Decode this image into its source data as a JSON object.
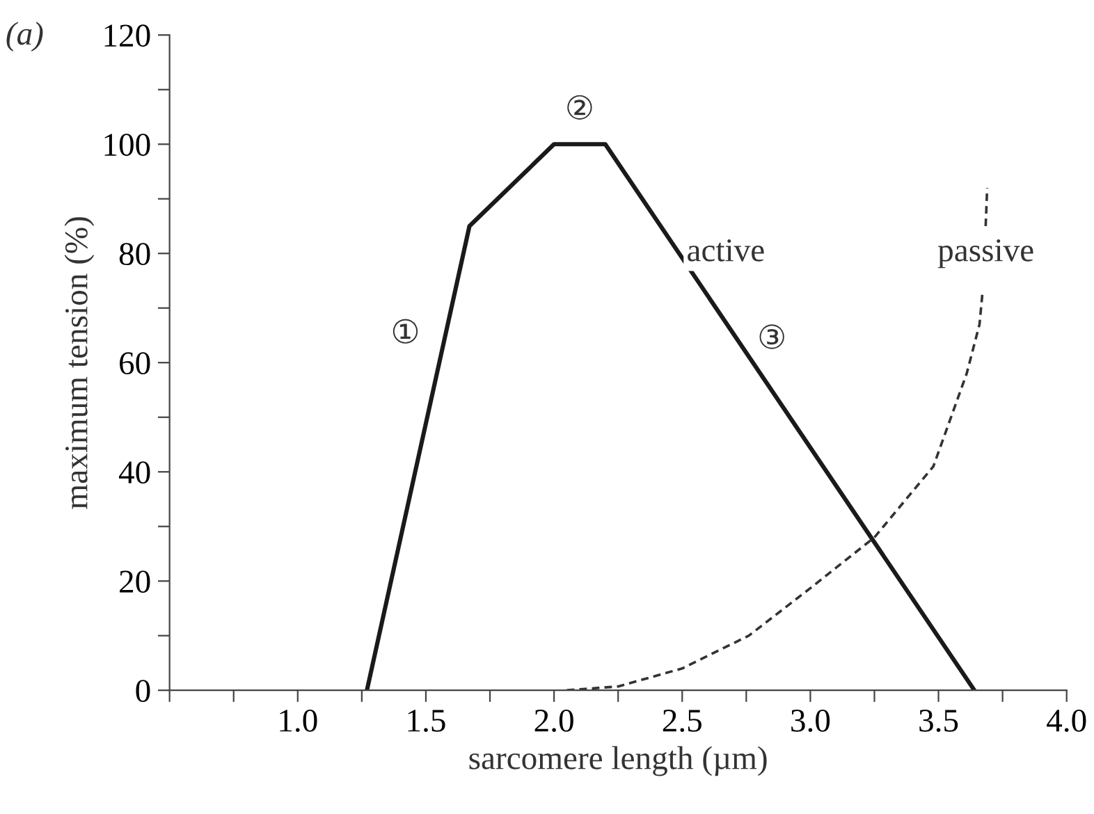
{
  "chart_data": {
    "type": "line",
    "xlabel": "sarcomere length (µm)",
    "ylabel": "maximum tension (%)",
    "series": [
      {
        "name": "active",
        "color": "#1a1a1a",
        "line_style": "solid",
        "x": [
          1.27,
          1.67,
          2.0,
          2.2,
          3.64
        ],
        "values": [
          0,
          85,
          100,
          100,
          0
        ]
      },
      {
        "name": "passive",
        "color": "#333333",
        "line_style": "dashed",
        "x": [
          2.05,
          2.25,
          2.5,
          2.76,
          3.0,
          3.25,
          3.48,
          3.61,
          3.66,
          3.672,
          3.678,
          3.684,
          3.69
        ],
        "values": [
          0,
          0.7,
          4,
          10,
          18.7,
          28,
          41,
          58,
          67,
          73,
          null,
          85,
          92
        ]
      }
    ],
    "xlim": [
      0.5,
      4.0
    ],
    "ylim": [
      0,
      120
    ],
    "xticks": [
      {
        "value": 0.5,
        "label": null
      },
      {
        "value": 0.75,
        "label": null
      },
      {
        "value": 1.0,
        "label": "1.0"
      },
      {
        "value": 1.25,
        "label": null
      },
      {
        "value": 1.5,
        "label": "1.5"
      },
      {
        "value": 1.75,
        "label": null
      },
      {
        "value": 2.0,
        "label": "2.0"
      },
      {
        "value": 2.25,
        "label": null
      },
      {
        "value": 2.5,
        "label": "2.5"
      },
      {
        "value": 2.75,
        "label": null
      },
      {
        "value": 3.0,
        "label": "3.0"
      },
      {
        "value": 3.25,
        "label": null
      },
      {
        "value": 3.5,
        "label": "3.5"
      },
      {
        "value": 3.75,
        "label": null
      },
      {
        "value": 4.0,
        "label": "4.0"
      }
    ],
    "yticks": [
      0,
      {
        "value": 10,
        "label": null
      },
      20,
      {
        "value": 30,
        "label": null
      },
      40,
      {
        "value": 50,
        "label": null
      },
      60,
      {
        "value": 70,
        "label": null
      },
      80,
      {
        "value": 90,
        "label": null
      },
      100,
      {
        "value": 110,
        "label": null
      },
      120
    ],
    "grid": false,
    "legend": false,
    "marker": "none",
    "annotations": [
      "(a)",
      {
        "text": "①",
        "x": 1.42,
        "y": 65
      },
      {
        "text": "②",
        "x": 2.1,
        "y": 106
      },
      {
        "text": "③",
        "x": 2.85,
        "y": 64
      }
    ]
  }
}
